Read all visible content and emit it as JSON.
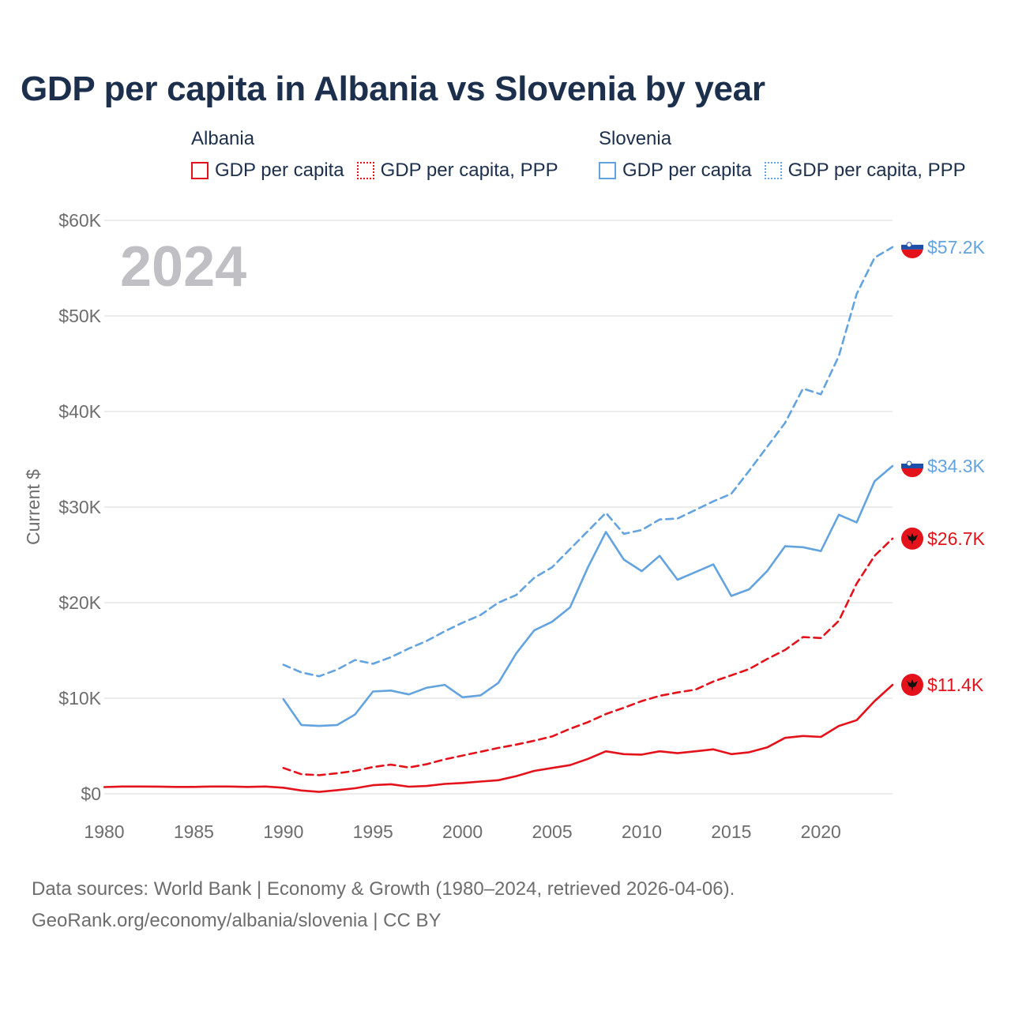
{
  "title": "GDP per capita in Albania vs Slovenia by year",
  "legend": {
    "albania": {
      "name": "Albania",
      "solid": "GDP per capita",
      "ppp": "GDP per capita, PPP"
    },
    "slovenia": {
      "name": "Slovenia",
      "solid": "GDP per capita",
      "ppp": "GDP per capita, PPP"
    }
  },
  "year_watermark": "2024",
  "footer": {
    "line1": "Data sources: World Bank | Economy & Growth (1980–2024, retrieved 2026-04-06).",
    "line2": "GeoRank.org/economy/albania/slovenia | CC BY"
  },
  "colors": {
    "albania": "#e3121b",
    "slovenia": "#63a3df",
    "grid": "#e6e6e6",
    "axis_text": "#6d6d6d"
  },
  "chart_data": {
    "type": "line",
    "ylabel": "Current $",
    "xlim": [
      1980,
      2024
    ],
    "ylim": [
      0,
      60000
    ],
    "x_ticks": [
      1980,
      1985,
      1990,
      1995,
      2000,
      2005,
      2010,
      2015,
      2020
    ],
    "y_ticks": [
      0,
      10000,
      20000,
      30000,
      40000,
      50000,
      60000
    ],
    "y_tick_labels": [
      "$0",
      "$10K",
      "$20K",
      "$30K",
      "$40K",
      "$50K",
      "$60K"
    ],
    "series": [
      {
        "name": "Albania GDP per capita",
        "country": "albania",
        "style": "solid",
        "end_label": "$11.4K",
        "start_year": 1980,
        "values": [
          700,
          760,
          760,
          750,
          720,
          720,
          760,
          760,
          720,
          760,
          640,
          350,
          200,
          380,
          580,
          900,
          1000,
          740,
          820,
          1030,
          1130,
          1280,
          1420,
          1850,
          2400,
          2700,
          3000,
          3650,
          4450,
          4150,
          4100,
          4450,
          4250,
          4450,
          4650,
          4150,
          4350,
          4850,
          5850,
          6050,
          5950,
          7100,
          7700,
          9700,
          11400
        ]
      },
      {
        "name": "Albania GDP per capita, PPP",
        "country": "albania",
        "style": "ppp",
        "end_label": "$26.7K",
        "start_year": 1990,
        "values": [
          2700,
          2050,
          1950,
          2150,
          2400,
          2800,
          3050,
          2750,
          3100,
          3600,
          4000,
          4400,
          4800,
          5150,
          5550,
          6000,
          6800,
          7500,
          8350,
          9000,
          9700,
          10250,
          10600,
          10900,
          11750,
          12400,
          13050,
          14100,
          15050,
          16400,
          16300,
          18100,
          22000,
          24900,
          26700
        ]
      },
      {
        "name": "Slovenia GDP per capita",
        "country": "slovenia",
        "style": "solid",
        "end_label": "$34.3K",
        "start_year": 1990,
        "values": [
          9900,
          7200,
          7100,
          7200,
          8300,
          10700,
          10800,
          10400,
          11100,
          11400,
          10100,
          10300,
          11600,
          14700,
          17100,
          18000,
          19500,
          23700,
          27400,
          24500,
          23300,
          24900,
          22400,
          23200,
          24000,
          20700,
          21400,
          23300,
          25900,
          25800,
          25400,
          29200,
          28400,
          32700,
          34300
        ]
      },
      {
        "name": "Slovenia GDP per capita, PPP",
        "country": "slovenia",
        "style": "ppp",
        "end_label": "$57.2K",
        "start_year": 1990,
        "values": [
          13500,
          12700,
          12300,
          13000,
          14000,
          13600,
          14300,
          15200,
          16000,
          17000,
          17900,
          18700,
          20000,
          20800,
          22600,
          23700,
          25600,
          27500,
          29400,
          27200,
          27600,
          28700,
          28800,
          29700,
          30600,
          31400,
          33800,
          36300,
          38800,
          42400,
          41800,
          45800,
          52300,
          56100,
          57200
        ]
      }
    ]
  }
}
